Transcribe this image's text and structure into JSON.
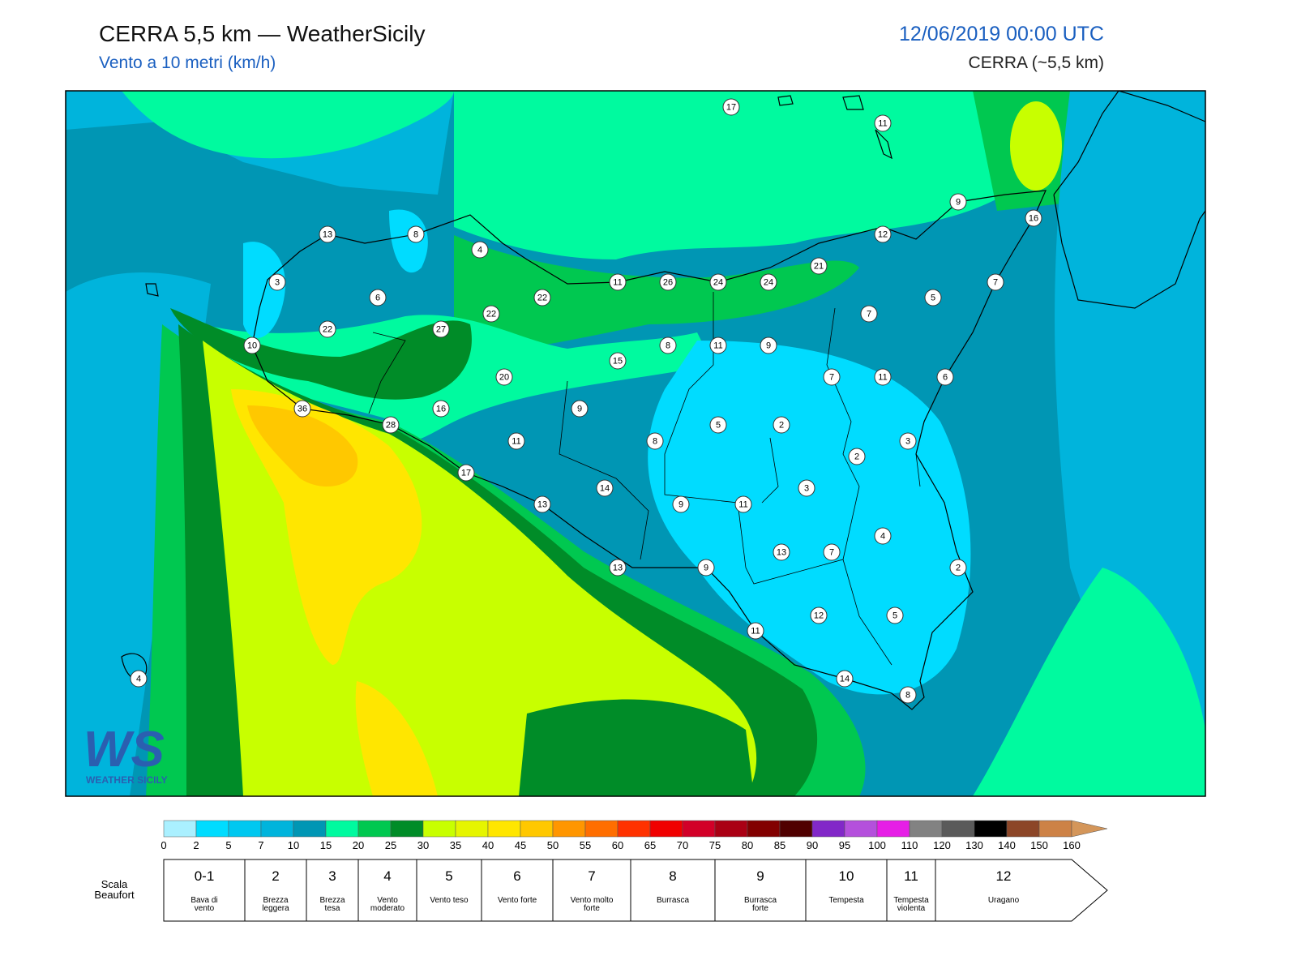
{
  "header": {
    "title": "CERRA 5,5 km — WeatherSicily",
    "subtitle": "Vento a 10 metri (km/h)",
    "valid_time": "12/06/2019 00:00 UTC",
    "model": "CERRA (~5,5 km)"
  },
  "map": {
    "station_values": [
      17,
      11,
      9,
      16,
      13,
      8,
      4,
      12,
      21,
      3,
      11,
      26,
      24,
      24,
      7,
      6,
      22,
      5,
      22,
      7,
      22,
      27,
      10,
      8,
      11,
      9,
      15,
      7,
      11,
      6,
      20,
      36,
      16,
      9,
      28,
      5,
      2,
      11,
      8,
      3,
      2,
      17,
      14,
      3,
      13,
      9,
      11,
      4,
      13,
      7,
      13,
      9,
      2,
      12,
      5,
      11,
      4,
      14,
      8
    ]
  },
  "logo": {
    "mark": "WS",
    "name": "WEATHER SICILY"
  },
  "colorbar": {
    "colors": [
      "#aaf0ff",
      "#00dcff",
      "#00c8f0",
      "#00b4dc",
      "#0096b4",
      "#00fa9f",
      "#00c850",
      "#008c28",
      "#c8ff00",
      "#e6f500",
      "#ffe600",
      "#ffc800",
      "#ff9600",
      "#ff6e00",
      "#ff3200",
      "#f00000",
      "#d20028",
      "#aa0014",
      "#820000",
      "#500000",
      "#8228c8",
      "#b450dc",
      "#e61ee6",
      "#828282",
      "#5a5a5a",
      "#000000",
      "#8c4628",
      "#cd8246",
      "#d4965a"
    ],
    "ticks": [
      0,
      2,
      5,
      7,
      10,
      15,
      20,
      25,
      30,
      35,
      40,
      45,
      50,
      55,
      60,
      65,
      70,
      75,
      80,
      85,
      90,
      95,
      100,
      110,
      120,
      130,
      140,
      150,
      160
    ]
  },
  "beaufort": {
    "title": "Scala Beaufort",
    "levels": [
      {
        "force": "0-1",
        "description": "Bava di vento"
      },
      {
        "force": 2,
        "description": "Brezza leggera"
      },
      {
        "force": 3,
        "description": "Brezza tesa"
      },
      {
        "force": 4,
        "description": "Vento moderato"
      },
      {
        "force": 5,
        "description": "Vento teso"
      },
      {
        "force": 6,
        "description": "Vento forte"
      },
      {
        "force": 7,
        "description": "Vento molto forte"
      },
      {
        "force": 8,
        "description": "Burrasca"
      },
      {
        "force": 9,
        "description": "Burrasca forte"
      },
      {
        "force": 10,
        "description": "Tempesta"
      },
      {
        "force": 11,
        "description": "Tempesta violenta"
      },
      {
        "force": 12,
        "description": "Uragano"
      }
    ]
  }
}
